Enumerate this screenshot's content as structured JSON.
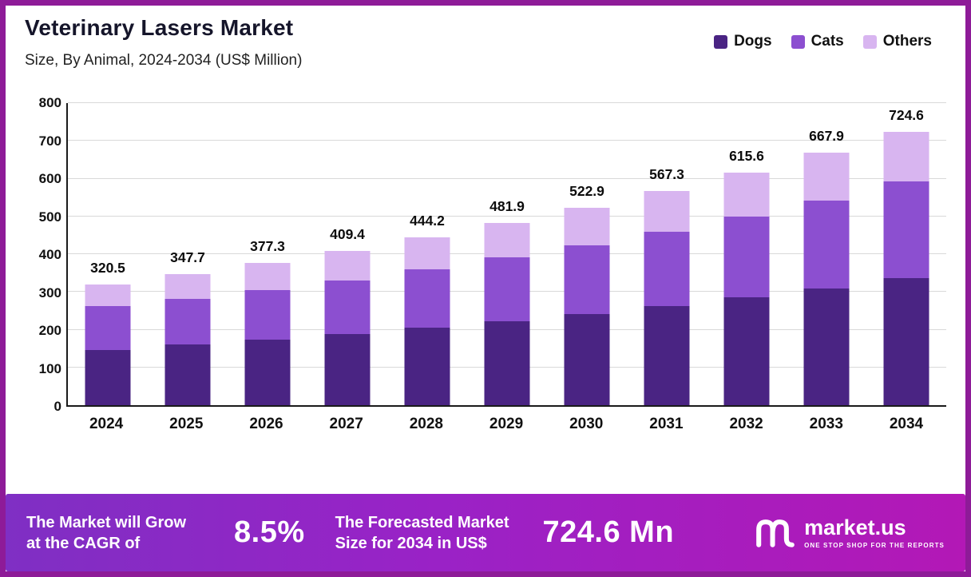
{
  "header": {
    "title": "Veterinary Lasers Market",
    "subtitle": "Size, By Animal, 2024-2034 (US$ Million)"
  },
  "chart_data": {
    "type": "bar",
    "stacked": true,
    "title": "Veterinary Lasers Market Size, By Animal, 2024-2034 (US$ Million)",
    "categories": [
      "2024",
      "2025",
      "2026",
      "2027",
      "2028",
      "2029",
      "2030",
      "2031",
      "2032",
      "2033",
      "2034"
    ],
    "series": [
      {
        "name": "Dogs",
        "color": "#4a2483",
        "values": [
          147,
          160,
          174,
          189,
          205,
          222,
          242,
          262,
          285,
          310,
          337
        ]
      },
      {
        "name": "Cats",
        "color": "#8c4fd0",
        "values": [
          115,
          122,
          131,
          142,
          155,
          169,
          182,
          198,
          214,
          231,
          255
        ]
      },
      {
        "name": "Others",
        "color": "#d8b5f0",
        "values": [
          58.5,
          65.7,
          72.3,
          78.4,
          84.2,
          90.9,
          98.9,
          107.3,
          116.6,
          126.9,
          132.6
        ]
      }
    ],
    "totals": [
      "320.5",
      "347.7",
      "377.3",
      "409.4",
      "444.2",
      "481.9",
      "522.9",
      "567.3",
      "615.6",
      "667.9",
      "724.6"
    ],
    "ylim": [
      0,
      800
    ],
    "yticks": [
      0,
      100,
      200,
      300,
      400,
      500,
      600,
      700,
      800
    ],
    "grid": true,
    "legend_position": "top-right"
  },
  "banner": {
    "cagr_label": "The Market will Grow\nat the CAGR of",
    "cagr_value": "8.5%",
    "forecast_label": "The Forecasted Market\nSize for 2034 in US$",
    "forecast_value": "724.6 Mn",
    "brand_name": "market.us",
    "brand_tagline": "ONE STOP SHOP FOR THE REPORTS"
  },
  "colors": {
    "frame_border": "#8e1b98",
    "banner_gradient_start": "#7f2fc4",
    "banner_gradient_end": "#b318b6",
    "gridline": "#d9d9d9"
  }
}
